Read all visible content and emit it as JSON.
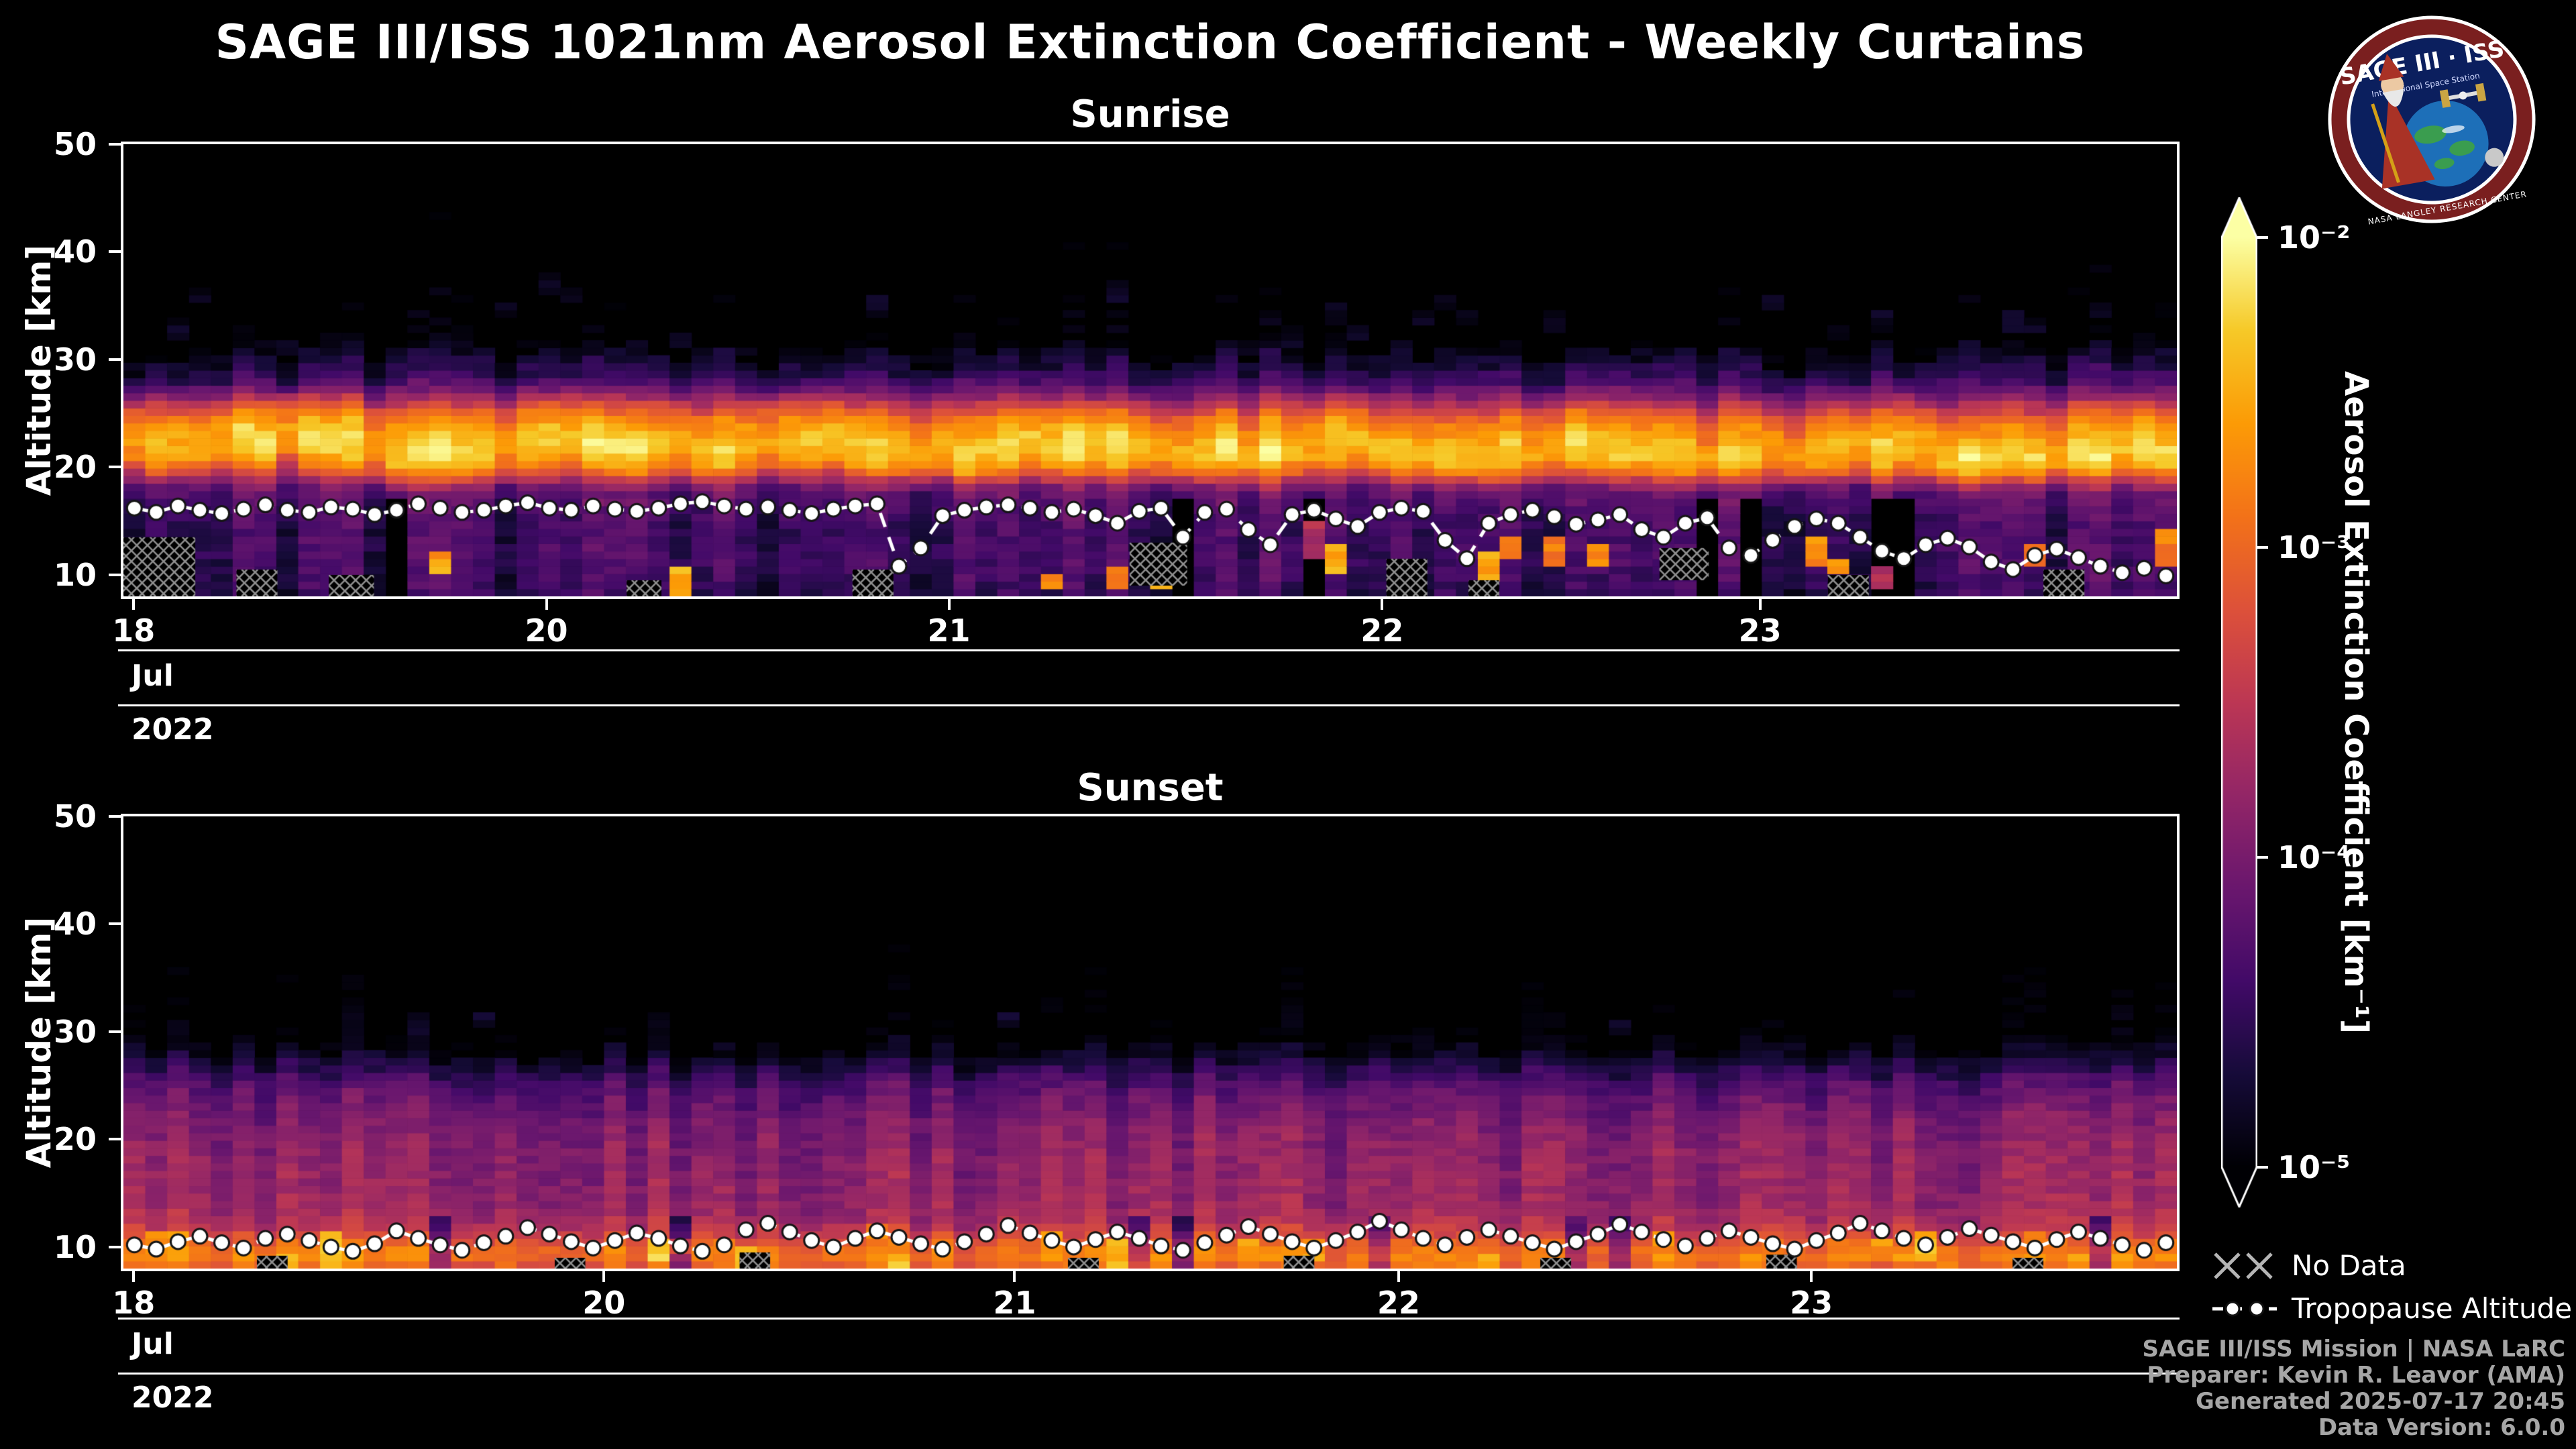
{
  "page": {
    "title": "SAGE III/ISS 1021nm Aerosol Extinction Coefficient - Weekly Curtains",
    "background": "#000000",
    "foreground": "#ffffff"
  },
  "logo": {
    "title": "SAGE III · ISS",
    "subtitle": "International Space Station",
    "rim_text": "NASA LANGLEY RESEARCH CENTER"
  },
  "colorbar": {
    "label": "Aerosol Extinction Coefficient [km⁻¹]",
    "scale": "log",
    "ticks": [
      "10⁻²",
      "10⁻³",
      "10⁻⁴",
      "10⁻⁵"
    ],
    "tick_values_log10": [
      -2,
      -3,
      -4,
      -5
    ],
    "colormap": "inferno",
    "extend": "both"
  },
  "legend": {
    "no_data": "No Data",
    "tropopause": "Tropopause Altitude"
  },
  "footer": {
    "lines": [
      "SAGE III/ISS Mission | NASA LaRC",
      "Preparer: Kevin R. Leavor (AMA)",
      "Generated 2025-07-17 20:45",
      "Data Version: 6.0.0"
    ]
  },
  "chart_data": [
    {
      "type": "heatmap",
      "title": "Sunrise",
      "ylabel": "Altitude [km]",
      "ylim": [
        8,
        50
      ],
      "yticks": [
        10,
        20,
        30,
        40,
        50
      ],
      "xticks": [
        {
          "f": 0.005,
          "label": "18"
        },
        {
          "f": 0.206,
          "label": "20"
        },
        {
          "f": 0.402,
          "label": "21"
        },
        {
          "f": 0.613,
          "label": "22"
        },
        {
          "f": 0.797,
          "label": "23"
        }
      ],
      "x_axis_levels": {
        "month": "Jul",
        "year": "2022"
      },
      "value_units": "km⁻¹",
      "value_scale_log10_range": [
        -5,
        -2
      ],
      "profile_log10": [
        [
          8,
          -4.55
        ],
        [
          10,
          -4.45
        ],
        [
          12,
          -4.4
        ],
        [
          14,
          -4.45
        ],
        [
          16,
          -4.35
        ],
        [
          17,
          -4.25
        ],
        [
          18,
          -4.15
        ],
        [
          19,
          -3.6
        ],
        [
          20,
          -2.95
        ],
        [
          21,
          -2.55
        ],
        [
          22,
          -2.35
        ],
        [
          23,
          -2.35
        ],
        [
          24,
          -2.55
        ],
        [
          25,
          -2.85
        ],
        [
          26,
          -3.35
        ],
        [
          27,
          -3.95
        ],
        [
          28,
          -4.4
        ],
        [
          29,
          -4.65
        ],
        [
          30,
          -4.8
        ],
        [
          31,
          -5.0
        ],
        [
          32,
          -5.2
        ],
        [
          50,
          -5.5
        ]
      ],
      "tropopause_km": [
        16.2,
        15.8,
        16.4,
        16.0,
        15.7,
        16.1,
        16.5,
        16.0,
        15.8,
        16.3,
        16.1,
        15.6,
        16.0,
        16.6,
        16.2,
        15.8,
        16.0,
        16.4,
        16.7,
        16.2,
        16.0,
        16.4,
        16.1,
        15.9,
        16.2,
        16.6,
        16.8,
        16.4,
        16.1,
        16.3,
        16.0,
        15.7,
        16.1,
        16.4,
        16.6,
        10.8,
        12.5,
        15.5,
        16.0,
        16.3,
        16.5,
        16.2,
        15.8,
        16.1,
        15.5,
        14.8,
        15.9,
        16.2,
        13.5,
        15.8,
        16.1,
        14.2,
        12.8,
        15.6,
        16.0,
        15.2,
        14.5,
        15.8,
        16.2,
        15.9,
        13.2,
        11.5,
        14.8,
        15.6,
        16.0,
        15.4,
        14.7,
        15.1,
        15.6,
        14.2,
        13.5,
        14.8,
        15.3,
        12.5,
        11.8,
        13.2,
        14.5,
        15.2,
        14.8,
        13.5,
        12.2,
        11.5,
        12.8,
        13.4,
        12.6,
        11.2,
        10.5,
        11.8,
        12.4,
        11.6,
        10.8,
        10.2,
        10.6,
        9.9
      ],
      "no_data_regions": [
        {
          "x0": 0.0,
          "x1": 0.035,
          "alt0": 8,
          "alt1": 13.5
        },
        {
          "x0": 0.055,
          "x1": 0.075,
          "alt0": 8,
          "alt1": 10.5
        },
        {
          "x0": 0.1,
          "x1": 0.122,
          "alt0": 8,
          "alt1": 10
        },
        {
          "x0": 0.245,
          "x1": 0.262,
          "alt0": 8,
          "alt1": 9.5
        },
        {
          "x0": 0.355,
          "x1": 0.375,
          "alt0": 8,
          "alt1": 10.5
        },
        {
          "x0": 0.49,
          "x1": 0.518,
          "alt0": 9,
          "alt1": 13
        },
        {
          "x0": 0.615,
          "x1": 0.635,
          "alt0": 8,
          "alt1": 11.5
        },
        {
          "x0": 0.655,
          "x1": 0.67,
          "alt0": 8,
          "alt1": 9.5
        },
        {
          "x0": 0.748,
          "x1": 0.772,
          "alt0": 9.5,
          "alt1": 12.5
        },
        {
          "x0": 0.83,
          "x1": 0.85,
          "alt0": 8,
          "alt1": 10
        },
        {
          "x0": 0.935,
          "x1": 0.955,
          "alt0": 8,
          "alt1": 10.5
        }
      ],
      "render": {
        "seed": 7,
        "cell_km": 0.7,
        "column_noise": 0.28,
        "cell_noise": 0.3,
        "band_center": 22.5,
        "band_halfwidth": 6,
        "band_wobble_km": 1.1,
        "band_drift_km": 1.4,
        "dark_col_prob": 0.12,
        "dark_below_km": 17,
        "dark_amount": 0.9,
        "speckle": {
          "prob": 0.25,
          "alt0": 30.5,
          "alt1": 37,
          "half_km": 0.8,
          "log10": -4.85
        },
        "low_patch": {
          "prob": 0.17,
          "prob_right": 0.45,
          "alt0": 9,
          "alt1": 13.5,
          "log10": -2.7
        }
      }
    },
    {
      "type": "heatmap",
      "title": "Sunset",
      "ylabel": "Altitude [km]",
      "ylim": [
        8,
        50
      ],
      "yticks": [
        10,
        20,
        30,
        40,
        50
      ],
      "xticks": [
        {
          "f": 0.005,
          "label": "18"
        },
        {
          "f": 0.234,
          "label": "20"
        },
        {
          "f": 0.434,
          "label": "21"
        },
        {
          "f": 0.621,
          "label": "22"
        },
        {
          "f": 0.822,
          "label": "23"
        }
      ],
      "x_axis_levels": {
        "month": "Jul",
        "year": "2022"
      },
      "value_units": "km⁻¹",
      "value_scale_log10_range": [
        -5,
        -2
      ],
      "profile_log10": [
        [
          8,
          -3.1
        ],
        [
          9,
          -2.85
        ],
        [
          10,
          -2.95
        ],
        [
          11,
          -3.3
        ],
        [
          12,
          -3.55
        ],
        [
          13,
          -3.7
        ],
        [
          14,
          -3.78
        ],
        [
          16,
          -3.82
        ],
        [
          18,
          -3.85
        ],
        [
          20,
          -3.92
        ],
        [
          22,
          -4.02
        ],
        [
          24,
          -4.18
        ],
        [
          25,
          -4.3
        ],
        [
          26,
          -4.48
        ],
        [
          27,
          -4.68
        ],
        [
          28,
          -4.9
        ],
        [
          29,
          -5.05
        ],
        [
          30,
          -5.2
        ],
        [
          50,
          -5.5
        ]
      ],
      "tropopause_km": [
        10.2,
        9.8,
        10.5,
        11.0,
        10.4,
        9.9,
        10.8,
        11.2,
        10.6,
        10.0,
        9.6,
        10.3,
        11.5,
        10.8,
        10.2,
        9.7,
        10.4,
        11.0,
        11.8,
        11.2,
        10.5,
        9.9,
        10.6,
        11.3,
        10.8,
        10.1,
        9.6,
        10.2,
        11.6,
        12.2,
        11.4,
        10.6,
        10.0,
        10.8,
        11.5,
        10.9,
        10.3,
        9.8,
        10.5,
        11.2,
        12.0,
        11.3,
        10.6,
        10.0,
        10.7,
        11.4,
        10.8,
        10.1,
        9.7,
        10.4,
        11.1,
        11.9,
        11.2,
        10.5,
        9.9,
        10.6,
        11.4,
        12.4,
        11.6,
        10.8,
        10.2,
        10.9,
        11.6,
        11.0,
        10.4,
        9.8,
        10.5,
        11.2,
        12.1,
        11.4,
        10.7,
        10.1,
        10.8,
        11.5,
        10.9,
        10.3,
        9.8,
        10.6,
        11.3,
        12.2,
        11.5,
        10.8,
        10.2,
        10.9,
        11.7,
        11.1,
        10.5,
        9.9,
        10.7,
        11.4,
        10.8,
        10.2,
        9.7,
        10.4
      ],
      "no_data_regions": [
        {
          "x0": 0.065,
          "x1": 0.08,
          "alt0": 8,
          "alt1": 9.2
        },
        {
          "x0": 0.21,
          "x1": 0.225,
          "alt0": 8,
          "alt1": 9
        },
        {
          "x0": 0.3,
          "x1": 0.315,
          "alt0": 8,
          "alt1": 9.5
        },
        {
          "x0": 0.46,
          "x1": 0.475,
          "alt0": 8,
          "alt1": 9
        },
        {
          "x0": 0.565,
          "x1": 0.58,
          "alt0": 8,
          "alt1": 9.2
        },
        {
          "x0": 0.69,
          "x1": 0.705,
          "alt0": 8,
          "alt1": 9
        },
        {
          "x0": 0.8,
          "x1": 0.815,
          "alt0": 8,
          "alt1": 9.3
        },
        {
          "x0": 0.92,
          "x1": 0.935,
          "alt0": 8,
          "alt1": 9
        }
      ],
      "render": {
        "seed": 41,
        "cell_km": 0.7,
        "column_noise": 0.22,
        "cell_noise": 0.28,
        "band_center": 0,
        "band_halfwidth": 1,
        "band_wobble_km": 0,
        "band_drift_km": 0,
        "dark_col_prob": 0.08,
        "dark_below_km": 13,
        "dark_amount": 0.7,
        "speckle": {
          "prob": 0.1,
          "alt0": 27.5,
          "alt1": 31,
          "half_km": 0.8,
          "log10": -4.8
        },
        "low_patch": {
          "prob": 0.3,
          "prob_right": 0.3,
          "alt0": 8.2,
          "alt1": 10.8,
          "log10": -2.55
        }
      }
    }
  ]
}
